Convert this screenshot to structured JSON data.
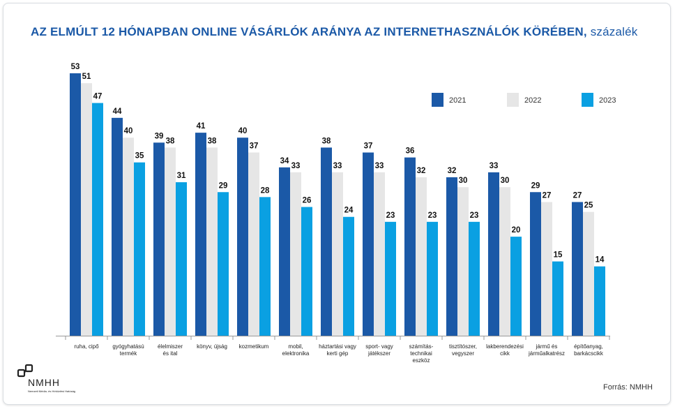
{
  "title": {
    "main": "AZ ELMÚLT 12 HÓNAPBAN ONLINE VÁSÁRLÓK ARÁNYA AZ INTERNETHASZNÁLÓK KÖRÉBEN,",
    "unit": "százalék"
  },
  "source": "Forrás: NMHH",
  "logo": {
    "text": "NMHH",
    "subtext": "Nemzeti Média- és Hírközlési Hatóság"
  },
  "colors": {
    "2021": "#1b59a7",
    "2022": "#e6e6e6",
    "2023": "#0aa0e2",
    "title": "#1b59a7"
  },
  "chart_data": {
    "type": "bar",
    "title": "AZ ELMÚLT 12 HÓNAPBAN ONLINE VÁSÁRLÓK ARÁNYA AZ INTERNETHASZNÁLÓK KÖRÉBEN, százalék",
    "xlabel": "",
    "ylabel": "",
    "ylim": [
      0,
      55
    ],
    "grid": false,
    "legend_position": "top-right",
    "categories": [
      [
        "ruha, cipő"
      ],
      [
        "gyógyhatású",
        "termék"
      ],
      [
        "élelmiszer",
        "és ital"
      ],
      [
        "könyv, újság"
      ],
      [
        "kozmetikum"
      ],
      [
        "mobil,",
        "elektronika"
      ],
      [
        "háztartási vagy",
        "kerti gép"
      ],
      [
        "sport- vagy",
        "játékszer"
      ],
      [
        "számítás-",
        "technikai",
        "eszköz"
      ],
      [
        "tisztítószer,",
        "vegyszer"
      ],
      [
        "lakberendezési",
        "cikk"
      ],
      [
        "jármű és",
        "járműalkatrész"
      ],
      [
        "építőanyag,",
        "barkácscikk"
      ]
    ],
    "series": [
      {
        "name": "2021",
        "values": [
          53,
          44,
          39,
          41,
          40,
          34,
          38,
          37,
          36,
          32,
          33,
          29,
          27
        ]
      },
      {
        "name": "2022",
        "values": [
          51,
          40,
          38,
          38,
          37,
          33,
          33,
          33,
          32,
          30,
          30,
          27,
          25
        ]
      },
      {
        "name": "2023",
        "values": [
          47,
          35,
          31,
          29,
          28,
          26,
          24,
          23,
          23,
          23,
          20,
          15,
          14
        ]
      }
    ]
  }
}
